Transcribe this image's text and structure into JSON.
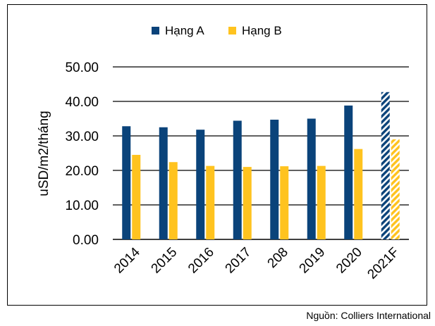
{
  "chart_data": {
    "type": "bar",
    "title": "",
    "xlabel": "",
    "ylabel": "uSD/m2/tháng",
    "ylim": [
      0,
      50
    ],
    "yticks": [
      "0.00",
      "10.00",
      "20.00",
      "30.00",
      "40.00",
      "50.00"
    ],
    "grid": true,
    "legend_position": "top",
    "categories": [
      "2014",
      "2015",
      "2016",
      "2017",
      "208",
      "2019",
      "2020",
      "2021F"
    ],
    "forecast_categories": [
      "2021F"
    ],
    "series": [
      {
        "name": "Hạng A",
        "color": "#0a437a",
        "values": [
          32.8,
          32.5,
          31.8,
          34.4,
          34.7,
          35.0,
          38.8,
          42.7
        ]
      },
      {
        "name": "Hạng B",
        "color": "#ffc31f",
        "values": [
          24.5,
          22.4,
          21.3,
          21.0,
          21.2,
          21.3,
          26.2,
          29.0
        ]
      }
    ]
  },
  "source_note": "Nguồn: Colliers International"
}
